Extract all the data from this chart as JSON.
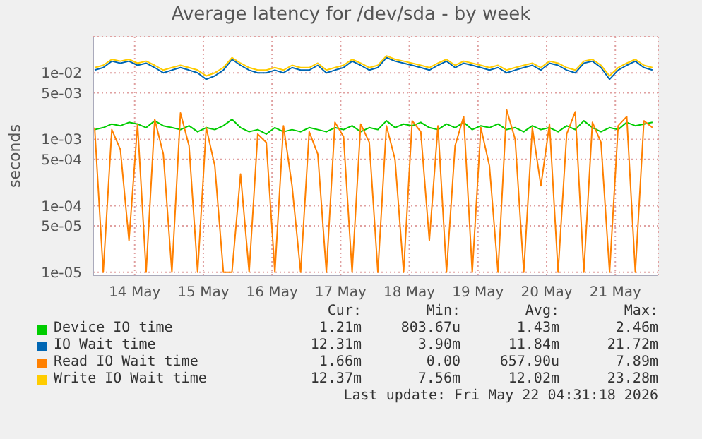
{
  "chart_data": {
    "type": "line",
    "title": "Average latency for /dev/sda - by week",
    "ylabel": "seconds",
    "log": "y",
    "grid": true,
    "legend": "bottom",
    "ylim": [
      9e-06,
      0.035
    ],
    "yticks": [
      {
        "value": 1e-05,
        "label": "1e-05"
      },
      {
        "value": 5e-05,
        "label": "5e-05"
      },
      {
        "value": 0.0001,
        "label": "1e-04"
      },
      {
        "value": 0.0005,
        "label": "5e-04"
      },
      {
        "value": 0.001,
        "label": "1e-03"
      },
      {
        "value": 0.005,
        "label": "5e-03"
      },
      {
        "value": 0.01,
        "label": "1e-02"
      }
    ],
    "xlim": [
      "2026-05-13T21:30",
      "2026-05-22T03:00"
    ],
    "xticks": [
      {
        "value": "2026-05-14T12:00",
        "label": "14 May"
      },
      {
        "value": "2026-05-15T12:00",
        "label": "15 May"
      },
      {
        "value": "2026-05-16T12:00",
        "label": "16 May"
      },
      {
        "value": "2026-05-17T12:00",
        "label": "17 May"
      },
      {
        "value": "2026-05-18T12:00",
        "label": "18 May"
      },
      {
        "value": "2026-05-19T12:00",
        "label": "19 May"
      },
      {
        "value": "2026-05-20T12:00",
        "label": "20 May"
      },
      {
        "value": "2026-05-21T12:00",
        "label": "21 May"
      }
    ],
    "x": [
      "2026-05-13T22:00",
      "2026-05-14T01:00",
      "2026-05-14T04:00",
      "2026-05-14T07:00",
      "2026-05-14T10:00",
      "2026-05-14T13:00",
      "2026-05-14T16:00",
      "2026-05-14T19:00",
      "2026-05-14T22:00",
      "2026-05-15T01:00",
      "2026-05-15T04:00",
      "2026-05-15T07:00",
      "2026-05-15T10:00",
      "2026-05-15T13:00",
      "2026-05-15T16:00",
      "2026-05-15T19:00",
      "2026-05-15T22:00",
      "2026-05-16T01:00",
      "2026-05-16T04:00",
      "2026-05-16T07:00",
      "2026-05-16T10:00",
      "2026-05-16T13:00",
      "2026-05-16T16:00",
      "2026-05-16T19:00",
      "2026-05-16T22:00",
      "2026-05-17T01:00",
      "2026-05-17T04:00",
      "2026-05-17T07:00",
      "2026-05-17T10:00",
      "2026-05-17T13:00",
      "2026-05-17T16:00",
      "2026-05-17T19:00",
      "2026-05-17T22:00",
      "2026-05-18T01:00",
      "2026-05-18T04:00",
      "2026-05-18T07:00",
      "2026-05-18T10:00",
      "2026-05-18T13:00",
      "2026-05-18T16:00",
      "2026-05-18T19:00",
      "2026-05-18T22:00",
      "2026-05-19T01:00",
      "2026-05-19T04:00",
      "2026-05-19T07:00",
      "2026-05-19T10:00",
      "2026-05-19T13:00",
      "2026-05-19T16:00",
      "2026-05-19T19:00",
      "2026-05-19T22:00",
      "2026-05-20T01:00",
      "2026-05-20T04:00",
      "2026-05-20T07:00",
      "2026-05-20T10:00",
      "2026-05-20T13:00",
      "2026-05-20T16:00",
      "2026-05-20T19:00",
      "2026-05-20T22:00",
      "2026-05-21T01:00",
      "2026-05-21T04:00",
      "2026-05-21T07:00",
      "2026-05-21T10:00",
      "2026-05-21T13:00",
      "2026-05-21T16:00",
      "2026-05-21T19:00",
      "2026-05-21T22:00",
      "2026-05-22T01:00"
    ],
    "series": [
      {
        "name": "Device IO time",
        "color": "#00cc00",
        "values": [
          0.0014,
          0.0015,
          0.0017,
          0.0016,
          0.0018,
          0.0017,
          0.0015,
          0.0019,
          0.0016,
          0.0015,
          0.0014,
          0.0016,
          0.0013,
          0.0015,
          0.0014,
          0.0016,
          0.002,
          0.0015,
          0.0013,
          0.0014,
          0.0012,
          0.0015,
          0.0013,
          0.0014,
          0.0013,
          0.0015,
          0.0014,
          0.0013,
          0.0015,
          0.0014,
          0.0016,
          0.0013,
          0.0015,
          0.0014,
          0.0019,
          0.0015,
          0.0017,
          0.0016,
          0.0018,
          0.0015,
          0.0014,
          0.0017,
          0.0015,
          0.0018,
          0.0014,
          0.0016,
          0.0015,
          0.0017,
          0.0014,
          0.0015,
          0.0013,
          0.0016,
          0.0014,
          0.0015,
          0.0013,
          0.0016,
          0.0014,
          0.0019,
          0.0015,
          0.0013,
          0.0015,
          0.0014,
          0.0018,
          0.0016,
          0.0017,
          0.0018
        ]
      },
      {
        "name": "IO Wait time",
        "color": "#0066b3",
        "values": [
          0.011,
          0.012,
          0.015,
          0.014,
          0.015,
          0.013,
          0.014,
          0.012,
          0.01,
          0.011,
          0.012,
          0.011,
          0.01,
          0.008,
          0.009,
          0.011,
          0.016,
          0.013,
          0.011,
          0.01,
          0.01,
          0.011,
          0.01,
          0.012,
          0.011,
          0.011,
          0.013,
          0.01,
          0.011,
          0.012,
          0.015,
          0.013,
          0.011,
          0.012,
          0.017,
          0.015,
          0.014,
          0.013,
          0.012,
          0.011,
          0.013,
          0.015,
          0.012,
          0.014,
          0.013,
          0.012,
          0.011,
          0.012,
          0.01,
          0.011,
          0.012,
          0.013,
          0.011,
          0.014,
          0.013,
          0.011,
          0.01,
          0.014,
          0.015,
          0.012,
          0.008,
          0.011,
          0.013,
          0.015,
          0.012,
          0.011
        ]
      },
      {
        "name": "Read IO Wait time",
        "color": "#ff8000",
        "values": [
          0.0015,
          1e-05,
          0.0014,
          0.0007,
          3e-05,
          0.0017,
          1e-05,
          0.002,
          0.0006,
          1e-05,
          0.0025,
          0.0008,
          1e-05,
          0.0015,
          0.0004,
          1e-05,
          1e-05,
          0.0003,
          1e-05,
          0.0012,
          0.0009,
          1e-05,
          0.0016,
          0.0002,
          1e-05,
          0.0013,
          0.0006,
          1e-05,
          0.0018,
          0.0011,
          1e-05,
          0.0017,
          0.0009,
          1e-05,
          0.0016,
          0.0005,
          1e-05,
          0.0019,
          0.0013,
          3e-05,
          0.0016,
          1e-05,
          0.0008,
          0.0022,
          1e-05,
          0.0015,
          0.0004,
          1e-05,
          0.0028,
          0.001,
          1e-05,
          0.0015,
          0.0002,
          0.0017,
          1e-05,
          0.0012,
          0.0026,
          1e-05,
          0.0018,
          0.0009,
          1e-05,
          0.0016,
          0.0022,
          1e-05,
          0.0019,
          0.0015
        ]
      },
      {
        "name": "Write IO Wait time",
        "color": "#ffcc00",
        "values": [
          0.012,
          0.013,
          0.016,
          0.015,
          0.016,
          0.014,
          0.015,
          0.013,
          0.011,
          0.012,
          0.013,
          0.012,
          0.011,
          0.009,
          0.01,
          0.012,
          0.017,
          0.014,
          0.012,
          0.011,
          0.011,
          0.012,
          0.011,
          0.013,
          0.012,
          0.012,
          0.014,
          0.011,
          0.012,
          0.013,
          0.016,
          0.014,
          0.012,
          0.013,
          0.018,
          0.016,
          0.015,
          0.014,
          0.013,
          0.012,
          0.014,
          0.016,
          0.013,
          0.015,
          0.014,
          0.013,
          0.012,
          0.013,
          0.011,
          0.012,
          0.013,
          0.014,
          0.012,
          0.015,
          0.014,
          0.012,
          0.011,
          0.015,
          0.016,
          0.013,
          0.009,
          0.012,
          0.014,
          0.016,
          0.013,
          0.012
        ]
      }
    ],
    "annotations": [
      "Cur:",
      "Min:",
      "Avg:",
      "Max:",
      "1.21m",
      "803.67u",
      "1.43m",
      "2.46m",
      "12.31m",
      "3.90m",
      "11.84m",
      "21.72m",
      "1.66m",
      "0.00",
      "657.90u",
      "7.89m",
      "12.37m",
      "7.56m",
      "12.02m",
      "23.28m",
      "Last update: Fri May 22 04:31:18 2026"
    ]
  }
}
